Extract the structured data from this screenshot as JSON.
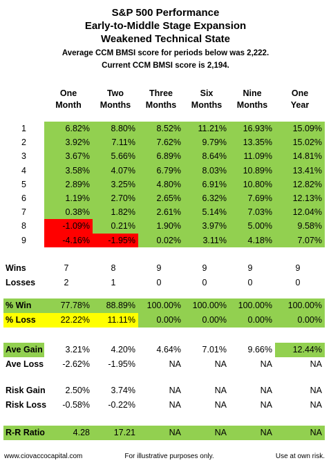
{
  "title": [
    "S&P 500 Performance",
    "Early-to-Middle Stage Expansion",
    "Weakened Technical State"
  ],
  "subtitle": [
    "Average CCM BMSI score for periods below was 2,222.",
    "Current CCM BMSI score is 2,194."
  ],
  "columns": [
    [
      "One",
      "Month"
    ],
    [
      "Two",
      "Months"
    ],
    [
      "Three",
      "Months"
    ],
    [
      "Six",
      "Months"
    ],
    [
      "Nine",
      "Months"
    ],
    [
      "One",
      "Year"
    ]
  ],
  "colors": {
    "green": "#92d050",
    "red": "#ff0000",
    "yellow": "#ffff00"
  },
  "rows": [
    {
      "label": "1",
      "cells": [
        "6.82%",
        "8.80%",
        "8.52%",
        "11.21%",
        "16.93%",
        "15.09%"
      ],
      "fills": [
        "green",
        "green",
        "green",
        "green",
        "green",
        "green"
      ]
    },
    {
      "label": "2",
      "cells": [
        "3.92%",
        "7.11%",
        "7.62%",
        "9.79%",
        "13.35%",
        "15.02%"
      ],
      "fills": [
        "green",
        "green",
        "green",
        "green",
        "green",
        "green"
      ]
    },
    {
      "label": "3",
      "cells": [
        "3.67%",
        "5.66%",
        "6.89%",
        "8.64%",
        "11.09%",
        "14.81%"
      ],
      "fills": [
        "green",
        "green",
        "green",
        "green",
        "green",
        "green"
      ]
    },
    {
      "label": "4",
      "cells": [
        "3.58%",
        "4.07%",
        "6.79%",
        "8.03%",
        "10.89%",
        "13.41%"
      ],
      "fills": [
        "green",
        "green",
        "green",
        "green",
        "green",
        "green"
      ]
    },
    {
      "label": "5",
      "cells": [
        "2.89%",
        "3.25%",
        "4.80%",
        "6.91%",
        "10.80%",
        "12.82%"
      ],
      "fills": [
        "green",
        "green",
        "green",
        "green",
        "green",
        "green"
      ]
    },
    {
      "label": "6",
      "cells": [
        "1.19%",
        "2.70%",
        "2.65%",
        "6.32%",
        "7.69%",
        "12.13%"
      ],
      "fills": [
        "green",
        "green",
        "green",
        "green",
        "green",
        "green"
      ]
    },
    {
      "label": "7",
      "cells": [
        "0.38%",
        "1.82%",
        "2.61%",
        "5.14%",
        "7.03%",
        "12.04%"
      ],
      "fills": [
        "green",
        "green",
        "green",
        "green",
        "green",
        "green"
      ]
    },
    {
      "label": "8",
      "cells": [
        "-1.09%",
        "0.21%",
        "1.90%",
        "3.97%",
        "5.00%",
        "9.58%"
      ],
      "fills": [
        "red",
        "green",
        "green",
        "green",
        "green",
        "green"
      ]
    },
    {
      "label": "9",
      "cells": [
        "-4.16%",
        "-1.95%",
        "0.02%",
        "3.11%",
        "4.18%",
        "7.07%"
      ],
      "fills": [
        "red",
        "red",
        "green",
        "green",
        "green",
        "green"
      ]
    }
  ],
  "stats": [
    {
      "label": "Wins",
      "cells": [
        7,
        8,
        9,
        9,
        9,
        9
      ]
    },
    {
      "label": "Losses",
      "cells": [
        2,
        1,
        0,
        0,
        0,
        0
      ]
    },
    {
      "label": "% Win",
      "cells": [
        "77.78%",
        "88.89%",
        "100.00%",
        "100.00%",
        "100.00%",
        "100.00%"
      ],
      "label_fill": "green",
      "fills": [
        "green",
        "green",
        "green",
        "green",
        "green",
        "green"
      ]
    },
    {
      "label": "% Loss",
      "cells": [
        "22.22%",
        "11.11%",
        "0.00%",
        "0.00%",
        "0.00%",
        "0.00%"
      ],
      "label_fill": "yellow",
      "fills": [
        "yellow",
        "yellow",
        "green",
        "green",
        "green",
        "green"
      ]
    },
    {
      "label": "Ave Gain",
      "cells": [
        "3.21%",
        "4.20%",
        "4.64%",
        "7.01%",
        "9.66%",
        "12.44%"
      ],
      "label_fill": "green",
      "fills": [
        null,
        null,
        null,
        null,
        null,
        "green"
      ]
    },
    {
      "label": "Ave Loss",
      "cells": [
        "-2.62%",
        "-1.95%",
        "NA",
        "NA",
        "NA",
        "NA"
      ]
    },
    {
      "label": "Risk Gain",
      "cells": [
        "2.50%",
        "3.74%",
        "NA",
        "NA",
        "NA",
        "NA"
      ]
    },
    {
      "label": "Risk Loss",
      "cells": [
        "-0.58%",
        "-0.22%",
        "NA",
        "NA",
        "NA",
        "NA"
      ]
    },
    {
      "label": "R-R Ratio",
      "cells": [
        "4.28",
        "17.21",
        "NA",
        "NA",
        "NA",
        "NA"
      ],
      "label_fill": "green",
      "fills": [
        "green",
        "green",
        "green",
        "green",
        "green",
        "green"
      ]
    }
  ],
  "footer": {
    "left": "www.ciovaccocapital.com",
    "center": "For illustrative purposes only.",
    "right": "Use at own risk."
  }
}
